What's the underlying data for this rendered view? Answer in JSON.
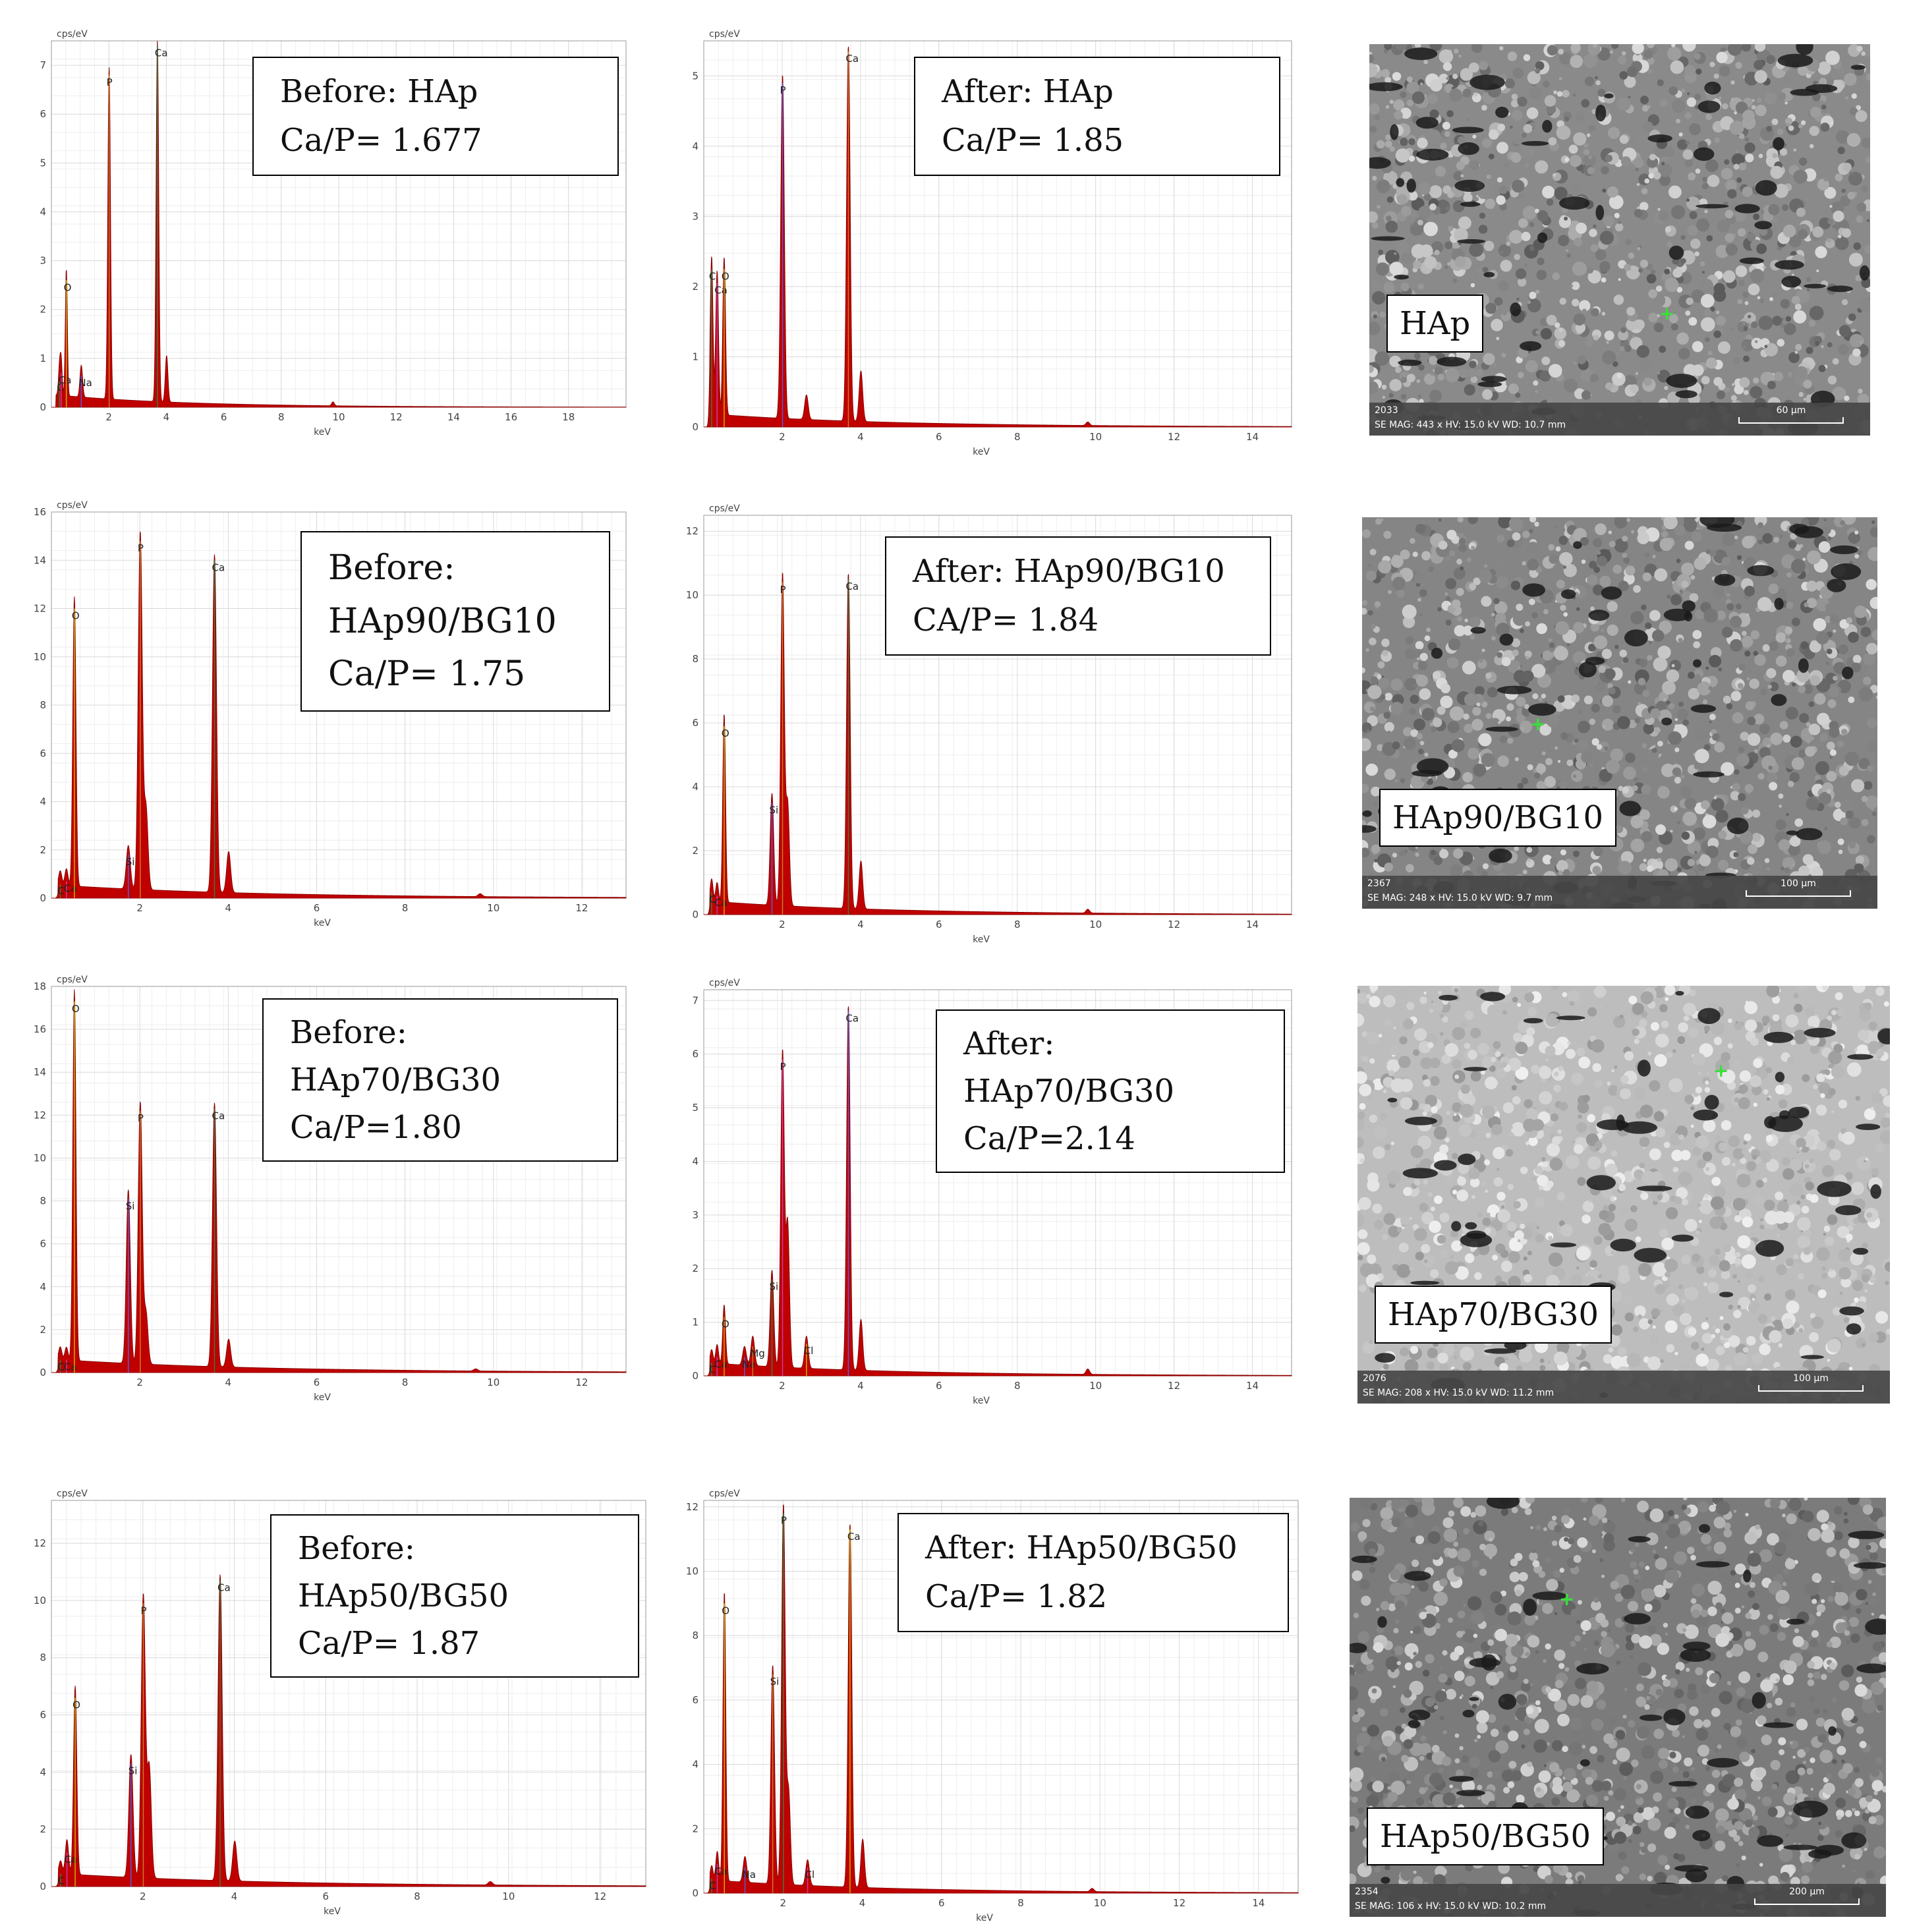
{
  "charts": [
    {
      "id": "before-hap",
      "chart_data": {
        "type": "area",
        "title": "",
        "xlabel": "keV",
        "ylabel": "cps/eV",
        "xlim": [
          0,
          20
        ],
        "ylim": [
          0,
          7.5
        ],
        "xticks": [
          2,
          4,
          6,
          8,
          10,
          12,
          14,
          16,
          18
        ],
        "yticks": [
          0,
          1,
          2,
          3,
          4,
          5,
          6,
          7
        ],
        "peaks": [
          {
            "x": 0.28,
            "y": 0.55,
            "label": "C"
          },
          {
            "x": 0.34,
            "y": 0.7,
            "label": "Ca"
          },
          {
            "x": 0.52,
            "y": 2.6,
            "label": "O"
          },
          {
            "x": 1.04,
            "y": 0.65,
            "label": "Na"
          },
          {
            "x": 2.01,
            "y": 6.8,
            "label": "P"
          },
          {
            "x": 3.69,
            "y": 7.4,
            "label": "Ca"
          },
          {
            "x": 4.01,
            "y": 0.95,
            "label": ""
          },
          {
            "x": 9.8,
            "y": 0.08,
            "label": ""
          }
        ]
      },
      "box_lines": [
        "Before: HAp",
        "Ca/P= 1.677"
      ]
    },
    {
      "id": "after-hap",
      "chart_data": {
        "type": "area",
        "title": "",
        "xlabel": "keV",
        "ylabel": "cps/eV",
        "xlim": [
          0,
          15
        ],
        "ylim": [
          0,
          5.5
        ],
        "xticks": [
          2,
          4,
          6,
          8,
          10,
          12,
          14
        ],
        "yticks": [
          0,
          1,
          2,
          3,
          4,
          5
        ],
        "peaks": [
          {
            "x": 0.2,
            "y": 2.25,
            "label": "C"
          },
          {
            "x": 0.34,
            "y": 2.05,
            "label": "Ca"
          },
          {
            "x": 0.52,
            "y": 2.25,
            "label": "O"
          },
          {
            "x": 2.01,
            "y": 4.9,
            "label": "P"
          },
          {
            "x": 2.62,
            "y": 0.35,
            "label": ""
          },
          {
            "x": 3.69,
            "y": 5.35,
            "label": "Ca"
          },
          {
            "x": 4.01,
            "y": 0.72,
            "label": ""
          },
          {
            "x": 9.8,
            "y": 0.05,
            "label": ""
          }
        ]
      },
      "box_lines": [
        "After: HAp",
        "Ca/P= 1.85"
      ]
    },
    {
      "id": "before-hap90",
      "chart_data": {
        "type": "area",
        "title": "",
        "xlabel": "keV",
        "ylabel": "cps/eV",
        "xlim": [
          0,
          13
        ],
        "ylim": [
          0,
          16
        ],
        "xticks": [
          2,
          4,
          6,
          8,
          10,
          12
        ],
        "yticks": [
          0,
          2,
          4,
          6,
          8,
          10,
          12,
          14,
          16
        ],
        "peaks": [
          {
            "x": 0.2,
            "y": 0.6,
            "label": "C"
          },
          {
            "x": 0.34,
            "y": 0.7,
            "label": "Ca"
          },
          {
            "x": 0.52,
            "y": 12.0,
            "label": "O"
          },
          {
            "x": 1.74,
            "y": 1.8,
            "label": "Si"
          },
          {
            "x": 2.01,
            "y": 14.8,
            "label": "P"
          },
          {
            "x": 2.14,
            "y": 3.4,
            "label": ""
          },
          {
            "x": 3.69,
            "y": 14.0,
            "label": "Ca"
          },
          {
            "x": 4.01,
            "y": 1.7,
            "label": ""
          },
          {
            "x": 9.7,
            "y": 0.12,
            "label": ""
          }
        ]
      },
      "box_lines": [
        "Before:",
        "HAp90/BG10",
        "Ca/P= 1.75"
      ]
    },
    {
      "id": "after-hap90",
      "chart_data": {
        "type": "area",
        "title": "",
        "xlabel": "keV",
        "ylabel": "cps/eV",
        "xlim": [
          0,
          15
        ],
        "ylim": [
          0,
          12.5
        ],
        "xticks": [
          2,
          4,
          6,
          8,
          10,
          12,
          14
        ],
        "yticks": [
          0,
          2,
          4,
          6,
          8,
          10,
          12
        ],
        "peaks": [
          {
            "x": 0.2,
            "y": 0.7,
            "label": "C"
          },
          {
            "x": 0.34,
            "y": 0.6,
            "label": "Ca"
          },
          {
            "x": 0.52,
            "y": 5.9,
            "label": "O"
          },
          {
            "x": 1.74,
            "y": 3.5,
            "label": "Si"
          },
          {
            "x": 2.01,
            "y": 10.4,
            "label": "P"
          },
          {
            "x": 2.14,
            "y": 3.2,
            "label": ""
          },
          {
            "x": 3.69,
            "y": 10.5,
            "label": "Ca"
          },
          {
            "x": 4.01,
            "y": 1.5,
            "label": ""
          },
          {
            "x": 9.8,
            "y": 0.12,
            "label": ""
          }
        ]
      },
      "box_lines": [
        "After: HAp90/BG10",
        "CA/P= 1.84"
      ]
    },
    {
      "id": "before-hap70",
      "chart_data": {
        "type": "area",
        "title": "",
        "xlabel": "keV",
        "ylabel": "cps/eV",
        "xlim": [
          0,
          13
        ],
        "ylim": [
          0,
          18
        ],
        "xticks": [
          2,
          4,
          6,
          8,
          10,
          12
        ],
        "yticks": [
          0,
          2,
          4,
          6,
          8,
          10,
          12,
          14,
          16,
          18
        ],
        "peaks": [
          {
            "x": 0.2,
            "y": 0.6,
            "label": "C"
          },
          {
            "x": 0.34,
            "y": 0.6,
            "label": "Ca"
          },
          {
            "x": 0.52,
            "y": 17.3,
            "label": "O"
          },
          {
            "x": 1.74,
            "y": 8.1,
            "label": "Si"
          },
          {
            "x": 2.01,
            "y": 12.2,
            "label": "P"
          },
          {
            "x": 2.14,
            "y": 2.4,
            "label": ""
          },
          {
            "x": 3.69,
            "y": 12.3,
            "label": "Ca"
          },
          {
            "x": 4.01,
            "y": 1.3,
            "label": ""
          },
          {
            "x": 9.6,
            "y": 0.1,
            "label": ""
          }
        ]
      },
      "box_lines": [
        "Before:",
        "HAp70/BG30",
        "Ca/P=1.80"
      ]
    },
    {
      "id": "after-hap70",
      "chart_data": {
        "type": "area",
        "title": "",
        "xlabel": "keV",
        "ylabel": "cps/eV",
        "xlim": [
          0,
          15
        ],
        "ylim": [
          0,
          7.2
        ],
        "xticks": [
          2,
          4,
          6,
          8,
          10,
          12,
          14
        ],
        "yticks": [
          0,
          1,
          2,
          3,
          4,
          5,
          6,
          7
        ],
        "peaks": [
          {
            "x": 0.2,
            "y": 0.25,
            "label": "C"
          },
          {
            "x": 0.34,
            "y": 0.35,
            "label": "Ca"
          },
          {
            "x": 0.52,
            "y": 1.1,
            "label": "O"
          },
          {
            "x": 1.04,
            "y": 0.35,
            "label": "Na"
          },
          {
            "x": 1.25,
            "y": 0.55,
            "label": "Mg"
          },
          {
            "x": 1.74,
            "y": 1.8,
            "label": "Si"
          },
          {
            "x": 2.01,
            "y": 5.9,
            "label": "P"
          },
          {
            "x": 2.14,
            "y": 2.7,
            "label": ""
          },
          {
            "x": 2.62,
            "y": 0.6,
            "label": "Cl"
          },
          {
            "x": 3.69,
            "y": 6.8,
            "label": "Ca"
          },
          {
            "x": 4.01,
            "y": 0.95,
            "label": ""
          },
          {
            "x": 9.8,
            "y": 0.1,
            "label": ""
          }
        ]
      },
      "box_lines": [
        "After:",
        "HAp70/BG30",
        "Ca/P=2.14"
      ]
    },
    {
      "id": "before-hap50",
      "chart_data": {
        "type": "area",
        "title": "",
        "xlabel": "keV",
        "ylabel": "cps/eV",
        "xlim": [
          0,
          13
        ],
        "ylim": [
          0,
          13.5
        ],
        "xticks": [
          2,
          4,
          6,
          8,
          10,
          12
        ],
        "yticks": [
          0,
          2,
          4,
          6,
          8,
          10,
          12
        ],
        "peaks": [
          {
            "x": 0.2,
            "y": 0.45,
            "label": "C"
          },
          {
            "x": 0.34,
            "y": 1.2,
            "label": "Ca"
          },
          {
            "x": 0.52,
            "y": 6.6,
            "label": "O"
          },
          {
            "x": 1.74,
            "y": 4.3,
            "label": "Si"
          },
          {
            "x": 2.01,
            "y": 9.9,
            "label": "P"
          },
          {
            "x": 2.14,
            "y": 3.9,
            "label": ""
          },
          {
            "x": 3.69,
            "y": 10.7,
            "label": "Ca"
          },
          {
            "x": 4.01,
            "y": 1.4,
            "label": ""
          },
          {
            "x": 9.6,
            "y": 0.12,
            "label": ""
          }
        ]
      },
      "box_lines": [
        "Before:",
        "HAp50/BG50",
        "Ca/P= 1.87"
      ]
    },
    {
      "id": "after-hap50",
      "chart_data": {
        "type": "area",
        "title": "",
        "xlabel": "keV",
        "ylabel": "cps/eV",
        "xlim": [
          0,
          15
        ],
        "ylim": [
          0,
          12.2
        ],
        "xticks": [
          2,
          4,
          6,
          8,
          10,
          12,
          14
        ],
        "yticks": [
          0,
          2,
          4,
          6,
          8,
          10,
          12
        ],
        "peaks": [
          {
            "x": 0.2,
            "y": 0.45,
            "label": "C"
          },
          {
            "x": 0.34,
            "y": 0.9,
            "label": "Ca"
          },
          {
            "x": 0.52,
            "y": 9.0,
            "label": "O"
          },
          {
            "x": 1.04,
            "y": 0.8,
            "label": "Na"
          },
          {
            "x": 1.74,
            "y": 6.8,
            "label": "Si"
          },
          {
            "x": 2.01,
            "y": 11.8,
            "label": "P"
          },
          {
            "x": 2.14,
            "y": 2.9,
            "label": ""
          },
          {
            "x": 2.62,
            "y": 0.8,
            "label": "Cl"
          },
          {
            "x": 3.69,
            "y": 11.3,
            "label": "Ca"
          },
          {
            "x": 4.01,
            "y": 1.5,
            "label": ""
          },
          {
            "x": 9.8,
            "y": 0.1,
            "label": ""
          }
        ]
      },
      "box_lines": [
        "After: HAp50/BG50",
        "Ca/P= 1.82"
      ]
    }
  ],
  "sem": [
    {
      "label": "HAp",
      "id_text": "2033",
      "info": "SE  MAG: 443 x  HV: 15.0 kV  WD: 10.7 mm",
      "scale": "60 µm",
      "tone": "#8a8a8a"
    },
    {
      "label": "HAp90/BG10",
      "id_text": "2367",
      "info": "SE  MAG: 248 x  HV: 15.0 kV  WD: 9.7 mm",
      "scale": "100 µm",
      "tone": "#858585"
    },
    {
      "label": "HAp70/BG30",
      "id_text": "2076",
      "info": "SE  MAG: 208 x  HV: 15.0 kV  WD: 11.2 mm",
      "scale": "100 µm",
      "tone": "#bdbdbd"
    },
    {
      "label": "HAp50/BG50",
      "id_text": "2354",
      "info": "SE  MAG: 106 x  HV: 15.0 kV  WD: 10.2 mm",
      "scale": "200 µm",
      "tone": "#7b7b7b"
    }
  ],
  "colors": {
    "spectrum": "#c00000",
    "grid": "#d9d9d9",
    "marker": "#3adf3a"
  }
}
